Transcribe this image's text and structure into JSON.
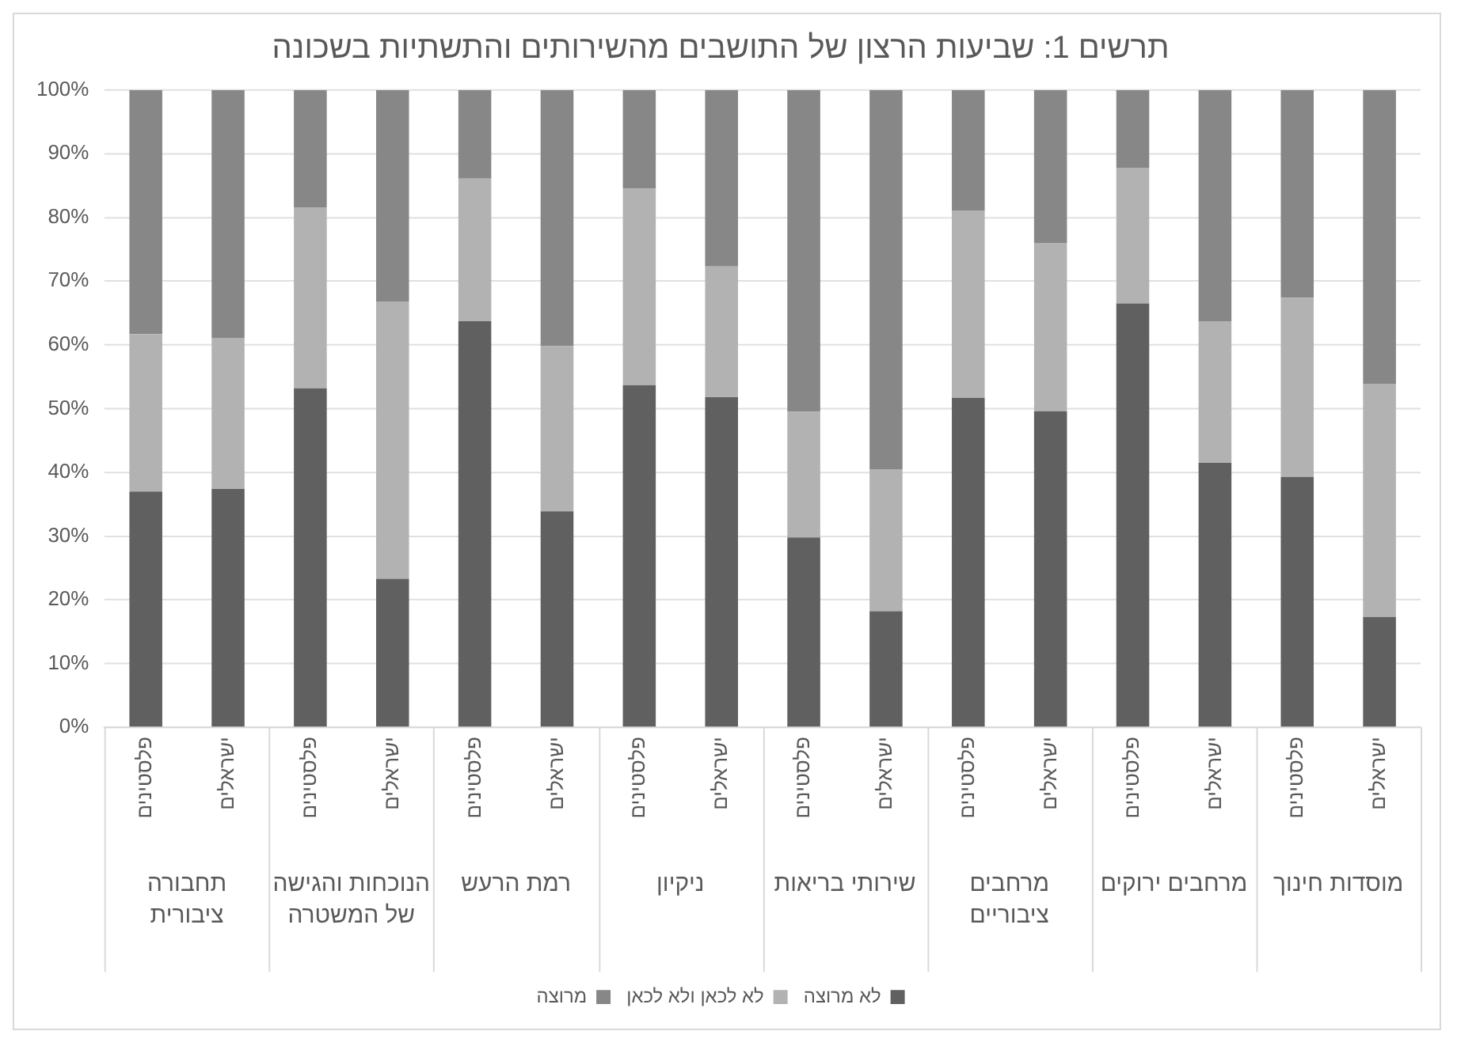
{
  "chart_data": {
    "type": "bar",
    "title": "תרשים 1: שביעות הרצון של התושבים מהשירותים והתשתיות בשכונה",
    "categories": [
      "פלסטינים",
      "ישראלים",
      "פלסטינים",
      "ישראלים",
      "פלסטינים",
      "ישראלים",
      "פלסטינים",
      "ישראלים",
      "פלסטינים",
      "ישראלים",
      "פלסטינים",
      "ישראלים",
      "פלסטינים",
      "ישראלים",
      "פלסטינים",
      "ישראלים"
    ],
    "series": [
      {
        "name": "לא מרוצה",
        "color": "#606060",
        "values": [
          37,
          37.4,
          53.2,
          23.3,
          63.7,
          33.9,
          53.7,
          51.8,
          29.8,
          18.2,
          51.7,
          49.6,
          66.5,
          41.5,
          39.3,
          17.3
        ]
      },
      {
        "name": "לא לכאן ולא לכאן",
        "color": "#b2b2b2",
        "values": [
          24.7,
          23.7,
          28.4,
          43.5,
          22.4,
          25.9,
          30.8,
          20.5,
          19.7,
          22.3,
          29.4,
          26.4,
          21.3,
          22.2,
          28.1,
          36.6
        ]
      },
      {
        "name": "מרוצה",
        "color": "#878787",
        "values": [
          38.3,
          38.9,
          18.4,
          33.2,
          13.9,
          40.2,
          15.5,
          27.7,
          50.5,
          59.5,
          18.9,
          24,
          12.2,
          36.3,
          32.6,
          46.1
        ]
      }
    ],
    "annotations": [
      "תחבורה ציבורית",
      "הנוכחות והגישה של המשטרה",
      "רמת הרעש",
      "ניקיון",
      "שירותי בריאות",
      "מרחבים ציבוריים",
      "מרחבים ירוקים",
      "מוסדות חינוך"
    ],
    "stacked": true,
    "ylim": [
      0,
      100
    ],
    "yticks": [
      {
        "value": 0,
        "label": "0%"
      },
      {
        "value": 10,
        "label": "10%"
      },
      {
        "value": 20,
        "label": "20%"
      },
      {
        "value": 30,
        "label": "30%"
      },
      {
        "value": 40,
        "label": "40%"
      },
      {
        "value": 50,
        "label": "50%"
      },
      {
        "value": 60,
        "label": "60%"
      },
      {
        "value": 70,
        "label": "70%"
      },
      {
        "value": 80,
        "label": "80%"
      },
      {
        "value": 90,
        "label": "90%"
      },
      {
        "value": 100,
        "label": "100%"
      }
    ],
    "grid": "y",
    "legend": "bottom"
  }
}
